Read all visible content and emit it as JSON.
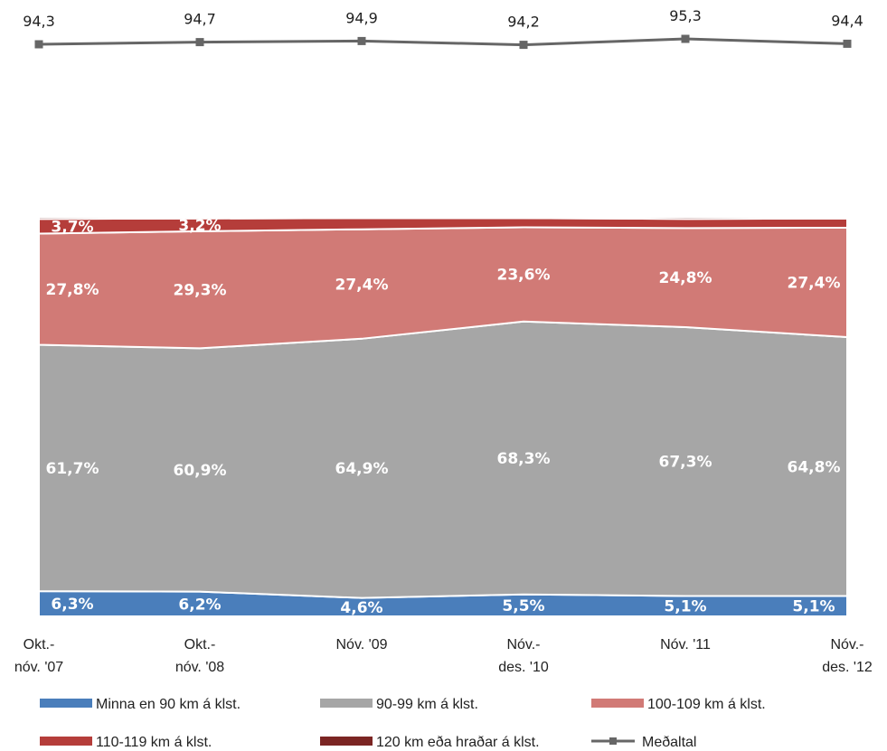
{
  "chart_data": {
    "type": "area",
    "stacked": true,
    "percent_stacked": true,
    "categories": [
      "Okt.-\nnóv. '07",
      "Okt.-\nnóv. '08",
      "Nóv. '09",
      "Nóv.-\ndes. '10",
      "Nóv. '11",
      "Nóv.-\ndes. '12"
    ],
    "series": [
      {
        "name": "Minna en 90 km á klst.",
        "color": "#4a7ebb",
        "values": [
          6.3,
          6.2,
          4.6,
          5.5,
          5.1,
          5.1
        ],
        "labels": [
          "6,3%",
          "6,2%",
          "4,6%",
          "5,5%",
          "5,1%",
          "5,1%"
        ]
      },
      {
        "name": "90-99 km á klst.",
        "color": "#a6a6a6",
        "values": [
          61.7,
          60.9,
          64.9,
          68.3,
          67.3,
          64.8
        ],
        "labels": [
          "61,7%",
          "60,9%",
          "64,9%",
          "68,3%",
          "67,3%",
          "64,8%"
        ]
      },
      {
        "name": "100-109 km á klst.",
        "color": "#d17a76",
        "values": [
          27.8,
          29.3,
          27.4,
          23.6,
          24.8,
          27.4
        ],
        "labels": [
          "27,8%",
          "29,3%",
          "27,4%",
          "23,6%",
          "24,8%",
          "27,4%"
        ]
      },
      {
        "name": "110-119 km á klst.",
        "color": "#b53d3a",
        "values": [
          3.7,
          3.2,
          2.8,
          2.3,
          2.3,
          2.3
        ],
        "labels": [
          "3,7%",
          "3,2%",
          "",
          "",
          "",
          ""
        ]
      },
      {
        "name": "120 km eða hraðar á klst.",
        "color": "#7b2523",
        "values": [
          0.5,
          0.4,
          0.3,
          0.3,
          0.5,
          0.4
        ],
        "labels": [
          "",
          "",
          "",
          "",
          "",
          ""
        ]
      }
    ],
    "line_series": {
      "name": "Meðaltal",
      "color": "#666666",
      "values": [
        94.3,
        94.7,
        94.9,
        94.2,
        95.3,
        94.4
      ],
      "labels": [
        "94,3",
        "94,7",
        "94,9",
        "94,2",
        "95,3",
        "94,4"
      ]
    },
    "legend": {
      "position": "bottom",
      "items": [
        {
          "label": "Minna en 90 km á klst.",
          "color": "#4a7ebb",
          "kind": "area"
        },
        {
          "label": "90-99 km á klst.",
          "color": "#a6a6a6",
          "kind": "area"
        },
        {
          "label": "100-109 km á klst.",
          "color": "#d17a76",
          "kind": "area"
        },
        {
          "label": "110-119 km á klst.",
          "color": "#b53d3a",
          "kind": "area"
        },
        {
          "label": "120 km eða hraðar á klst.",
          "color": "#7b2523",
          "kind": "area"
        },
        {
          "label": "Meðaltal",
          "color": "#666666",
          "kind": "line"
        }
      ]
    }
  }
}
